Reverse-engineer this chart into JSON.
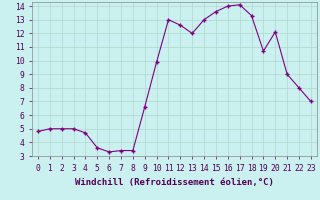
{
  "x": [
    0,
    1,
    2,
    3,
    4,
    5,
    6,
    7,
    8,
    9,
    10,
    11,
    12,
    13,
    14,
    15,
    16,
    17,
    18,
    19,
    20,
    21,
    22,
    23
  ],
  "y": [
    4.8,
    5.0,
    5.0,
    5.0,
    4.7,
    3.6,
    3.3,
    3.4,
    3.4,
    6.6,
    9.9,
    13.0,
    12.6,
    12.0,
    13.0,
    13.6,
    14.0,
    14.1,
    13.3,
    10.7,
    12.1,
    9.0,
    8.0,
    7.0
  ],
  "xlabel": "Windchill (Refroidissement éolien,°C)",
  "xlim": [
    -0.5,
    23.5
  ],
  "ylim": [
    3,
    14.3
  ],
  "yticks": [
    3,
    4,
    5,
    6,
    7,
    8,
    9,
    10,
    11,
    12,
    13,
    14
  ],
  "xticks": [
    0,
    1,
    2,
    3,
    4,
    5,
    6,
    7,
    8,
    9,
    10,
    11,
    12,
    13,
    14,
    15,
    16,
    17,
    18,
    19,
    20,
    21,
    22,
    23
  ],
  "line_color": "#800080",
  "marker_color": "#800080",
  "bg_color": "#caf0f0",
  "grid_color": "#b0d8cc",
  "xlabel_fontsize": 6.5,
  "tick_fontsize": 5.8
}
